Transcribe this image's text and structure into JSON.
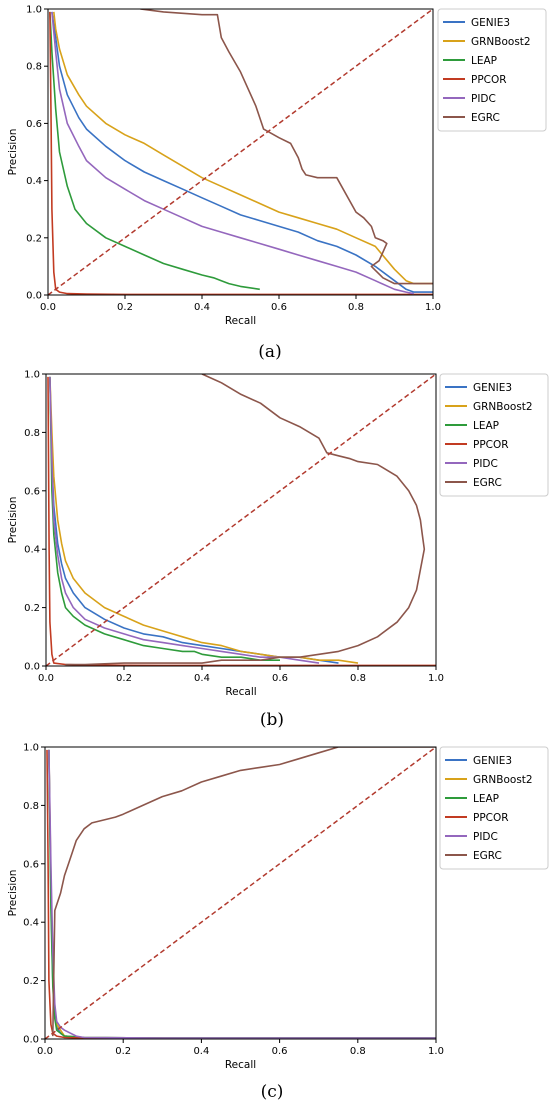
{
  "figure": {
    "panel_labels": [
      "(a)",
      "(b)",
      "(c)"
    ]
  },
  "colors": {
    "GENIE3": "#3a73c4",
    "GRNBoost2": "#d8a21a",
    "LEAP": "#2e9b3b",
    "PPCOR": "#c23b22",
    "PIDC": "#9467bd",
    "EGRC": "#8c564b",
    "diagonal": "#b23a2e"
  },
  "chart_data": [
    {
      "type": "line",
      "panel": "(a)",
      "xlabel": "Recall",
      "ylabel": "Precision",
      "xlim": [
        0,
        1
      ],
      "ylim": [
        0,
        1
      ],
      "xticks": [
        "0.0",
        "0.2",
        "0.4",
        "0.6",
        "0.8",
        "1.0"
      ],
      "yticks": [
        "0.0",
        "0.2",
        "0.4",
        "0.6",
        "0.8",
        "1.0"
      ],
      "grid": false,
      "legend_position": "right-top",
      "diagonal": {
        "x": [
          0,
          1
        ],
        "y": [
          0,
          1
        ],
        "style": "dashed"
      },
      "series": [
        {
          "name": "GENIE3",
          "x": [
            0.01,
            0.02,
            0.03,
            0.05,
            0.08,
            0.1,
            0.15,
            0.2,
            0.25,
            0.3,
            0.35,
            0.4,
            0.45,
            0.5,
            0.55,
            0.6,
            0.65,
            0.7,
            0.75,
            0.8,
            0.85,
            0.9,
            0.93,
            0.95,
            1.0
          ],
          "y": [
            0.99,
            0.9,
            0.8,
            0.7,
            0.62,
            0.58,
            0.52,
            0.47,
            0.43,
            0.4,
            0.37,
            0.34,
            0.31,
            0.28,
            0.26,
            0.24,
            0.22,
            0.19,
            0.17,
            0.14,
            0.1,
            0.05,
            0.02,
            0.01,
            0.01
          ]
        },
        {
          "name": "GRNBoost2",
          "x": [
            0.015,
            0.02,
            0.03,
            0.05,
            0.08,
            0.1,
            0.15,
            0.2,
            0.25,
            0.3,
            0.35,
            0.4,
            0.45,
            0.5,
            0.55,
            0.6,
            0.65,
            0.7,
            0.75,
            0.8,
            0.85,
            0.9,
            0.93,
            0.95,
            1.0
          ],
          "y": [
            0.99,
            0.93,
            0.86,
            0.77,
            0.7,
            0.66,
            0.6,
            0.56,
            0.53,
            0.49,
            0.45,
            0.41,
            0.38,
            0.35,
            0.32,
            0.29,
            0.27,
            0.25,
            0.23,
            0.2,
            0.17,
            0.09,
            0.05,
            0.04,
            0.04
          ]
        },
        {
          "name": "LEAP",
          "x": [
            0.005,
            0.01,
            0.02,
            0.03,
            0.05,
            0.07,
            0.1,
            0.15,
            0.2,
            0.25,
            0.3,
            0.35,
            0.4,
            0.43,
            0.45,
            0.47,
            0.5,
            0.55
          ],
          "y": [
            0.99,
            0.85,
            0.65,
            0.5,
            0.38,
            0.3,
            0.25,
            0.2,
            0.17,
            0.14,
            0.11,
            0.09,
            0.07,
            0.06,
            0.05,
            0.04,
            0.03,
            0.02
          ]
        },
        {
          "name": "PPCOR",
          "x": [
            0.005,
            0.008,
            0.01,
            0.015,
            0.02,
            0.03,
            0.05,
            0.1,
            0.2,
            0.4,
            0.6,
            0.8,
            1.0
          ],
          "y": [
            0.99,
            0.6,
            0.3,
            0.08,
            0.02,
            0.01,
            0.005,
            0.003,
            0.002,
            0.002,
            0.002,
            0.002,
            0.002
          ]
        },
        {
          "name": "PIDC",
          "x": [
            0.01,
            0.02,
            0.03,
            0.05,
            0.08,
            0.1,
            0.15,
            0.2,
            0.25,
            0.3,
            0.35,
            0.4,
            0.45,
            0.5,
            0.55,
            0.6,
            0.65,
            0.7,
            0.75,
            0.8,
            0.85,
            0.9,
            0.93,
            0.95
          ],
          "y": [
            0.99,
            0.85,
            0.72,
            0.6,
            0.52,
            0.47,
            0.41,
            0.37,
            0.33,
            0.3,
            0.27,
            0.24,
            0.22,
            0.2,
            0.18,
            0.16,
            0.14,
            0.12,
            0.1,
            0.08,
            0.05,
            0.02,
            0.01,
            0.005
          ]
        },
        {
          "name": "EGRC",
          "x": [
            0.24,
            0.3,
            0.4,
            0.44,
            0.45,
            0.47,
            0.5,
            0.52,
            0.54,
            0.56,
            0.6,
            0.63,
            0.65,
            0.66,
            0.67,
            0.7,
            0.73,
            0.75,
            0.8,
            0.82,
            0.84,
            0.85,
            0.87,
            0.88,
            0.86,
            0.84,
            0.87,
            0.9,
            0.95,
            1.0
          ],
          "y": [
            1.0,
            0.99,
            0.98,
            0.98,
            0.9,
            0.85,
            0.78,
            0.72,
            0.66,
            0.58,
            0.55,
            0.53,
            0.48,
            0.44,
            0.42,
            0.41,
            0.41,
            0.41,
            0.29,
            0.27,
            0.24,
            0.2,
            0.19,
            0.18,
            0.12,
            0.1,
            0.06,
            0.04,
            0.04,
            0.04
          ]
        }
      ]
    },
    {
      "type": "line",
      "panel": "(b)",
      "xlabel": "Recall",
      "ylabel": "Precision",
      "xlim": [
        0,
        1
      ],
      "ylim": [
        0,
        1
      ],
      "xticks": [
        "0.0",
        "0.2",
        "0.4",
        "0.6",
        "0.8",
        "1.0"
      ],
      "yticks": [
        "0.0",
        "0.2",
        "0.4",
        "0.6",
        "0.8",
        "1.0"
      ],
      "grid": false,
      "legend_position": "right-top",
      "diagonal": {
        "x": [
          0,
          1
        ],
        "y": [
          0,
          1
        ],
        "style": "dashed"
      },
      "series": [
        {
          "name": "GENIE3",
          "x": [
            0.01,
            0.015,
            0.02,
            0.03,
            0.04,
            0.05,
            0.07,
            0.1,
            0.15,
            0.2,
            0.25,
            0.3,
            0.35,
            0.4,
            0.45,
            0.5,
            0.55,
            0.6,
            0.65,
            0.7,
            0.75
          ],
          "y": [
            0.99,
            0.7,
            0.55,
            0.42,
            0.35,
            0.3,
            0.25,
            0.2,
            0.16,
            0.13,
            0.11,
            0.1,
            0.08,
            0.07,
            0.06,
            0.05,
            0.04,
            0.03,
            0.03,
            0.02,
            0.01
          ]
        },
        {
          "name": "GRNBoost2",
          "x": [
            0.01,
            0.015,
            0.02,
            0.03,
            0.04,
            0.05,
            0.07,
            0.1,
            0.15,
            0.2,
            0.25,
            0.3,
            0.35,
            0.4,
            0.45,
            0.5,
            0.55,
            0.6,
            0.65,
            0.7,
            0.75,
            0.8
          ],
          "y": [
            0.99,
            0.8,
            0.65,
            0.5,
            0.42,
            0.36,
            0.3,
            0.25,
            0.2,
            0.17,
            0.14,
            0.12,
            0.1,
            0.08,
            0.07,
            0.05,
            0.04,
            0.03,
            0.03,
            0.02,
            0.02,
            0.01
          ]
        },
        {
          "name": "LEAP",
          "x": [
            0.01,
            0.015,
            0.02,
            0.03,
            0.04,
            0.05,
            0.07,
            0.1,
            0.15,
            0.2,
            0.25,
            0.3,
            0.35,
            0.38,
            0.4,
            0.45,
            0.5,
            0.55,
            0.6
          ],
          "y": [
            0.99,
            0.6,
            0.45,
            0.32,
            0.25,
            0.2,
            0.17,
            0.14,
            0.11,
            0.09,
            0.07,
            0.06,
            0.05,
            0.05,
            0.04,
            0.03,
            0.03,
            0.02,
            0.02
          ]
        },
        {
          "name": "PPCOR",
          "x": [
            0.005,
            0.008,
            0.01,
            0.015,
            0.02,
            0.05,
            0.1,
            0.3,
            0.5,
            0.7,
            0.9,
            1.0
          ],
          "y": [
            0.99,
            0.4,
            0.15,
            0.04,
            0.01,
            0.005,
            0.003,
            0.002,
            0.002,
            0.002,
            0.002,
            0.002
          ]
        },
        {
          "name": "PIDC",
          "x": [
            0.01,
            0.015,
            0.02,
            0.03,
            0.04,
            0.05,
            0.07,
            0.1,
            0.15,
            0.2,
            0.25,
            0.3,
            0.35,
            0.4,
            0.45,
            0.5,
            0.55,
            0.6,
            0.65,
            0.7
          ],
          "y": [
            0.99,
            0.7,
            0.5,
            0.38,
            0.3,
            0.25,
            0.2,
            0.16,
            0.13,
            0.11,
            0.09,
            0.08,
            0.07,
            0.06,
            0.05,
            0.04,
            0.03,
            0.03,
            0.02,
            0.01
          ]
        },
        {
          "name": "EGRC",
          "x": [
            0.4,
            0.45,
            0.5,
            0.55,
            0.6,
            0.65,
            0.7,
            0.72,
            0.75,
            0.78,
            0.8,
            0.85,
            0.9,
            0.93,
            0.95,
            0.96,
            0.965,
            0.97,
            0.96,
            0.95,
            0.93,
            0.9,
            0.85,
            0.8,
            0.75,
            0.7,
            0.65,
            0.6,
            0.55,
            0.5,
            0.45,
            0.4,
            0.3,
            0.2,
            0.1,
            0.05
          ],
          "y": [
            1.0,
            0.97,
            0.93,
            0.9,
            0.85,
            0.82,
            0.78,
            0.73,
            0.72,
            0.71,
            0.7,
            0.69,
            0.65,
            0.6,
            0.55,
            0.5,
            0.45,
            0.4,
            0.33,
            0.26,
            0.2,
            0.15,
            0.1,
            0.07,
            0.05,
            0.04,
            0.03,
            0.03,
            0.02,
            0.02,
            0.02,
            0.01,
            0.01,
            0.01,
            0.005,
            0.005
          ]
        }
      ]
    },
    {
      "type": "line",
      "panel": "(c)",
      "xlabel": "Recall",
      "ylabel": "Precision",
      "xlim": [
        0,
        1
      ],
      "ylim": [
        0,
        1
      ],
      "xticks": [
        "0.0",
        "0.2",
        "0.4",
        "0.6",
        "0.8",
        "1.0"
      ],
      "yticks": [
        "0.0",
        "0.2",
        "0.4",
        "0.6",
        "0.8",
        "1.0"
      ],
      "grid": false,
      "legend_position": "right-top",
      "diagonal": {
        "x": [
          0,
          1
        ],
        "y": [
          0,
          1
        ],
        "style": "dashed"
      },
      "series": [
        {
          "name": "GENIE3",
          "x": [
            0.01,
            0.015,
            0.02,
            0.025,
            0.03,
            0.04,
            0.05,
            0.1,
            0.3,
            0.6,
            1.0
          ],
          "y": [
            0.99,
            0.5,
            0.2,
            0.08,
            0.04,
            0.02,
            0.01,
            0.005,
            0.003,
            0.003,
            0.003
          ]
        },
        {
          "name": "GRNBoost2",
          "x": [
            0.01,
            0.015,
            0.02,
            0.025,
            0.03,
            0.04,
            0.05,
            0.1,
            0.3,
            0.6,
            1.0
          ],
          "y": [
            0.99,
            0.55,
            0.25,
            0.1,
            0.05,
            0.03,
            0.01,
            0.005,
            0.003,
            0.003,
            0.003
          ]
        },
        {
          "name": "LEAP",
          "x": [
            0.01,
            0.015,
            0.02,
            0.025,
            0.03,
            0.04,
            0.05,
            0.1,
            0.3,
            0.6,
            1.0
          ],
          "y": [
            0.99,
            0.45,
            0.18,
            0.07,
            0.03,
            0.02,
            0.01,
            0.005,
            0.003,
            0.003,
            0.003
          ]
        },
        {
          "name": "PPCOR",
          "x": [
            0.005,
            0.008,
            0.01,
            0.015,
            0.02,
            0.03,
            0.05,
            0.1,
            0.5,
            1.0
          ],
          "y": [
            0.99,
            0.6,
            0.2,
            0.05,
            0.02,
            0.01,
            0.005,
            0.003,
            0.002,
            0.002
          ]
        },
        {
          "name": "PIDC",
          "x": [
            0.01,
            0.015,
            0.02,
            0.025,
            0.03,
            0.04,
            0.05,
            0.08,
            0.1,
            0.3,
            0.6,
            1.0
          ],
          "y": [
            0.99,
            0.6,
            0.3,
            0.12,
            0.06,
            0.04,
            0.03,
            0.01,
            0.005,
            0.003,
            0.003,
            0.003
          ]
        },
        {
          "name": "EGRC",
          "x": [
            0.02,
            0.025,
            0.03,
            0.04,
            0.05,
            0.06,
            0.07,
            0.08,
            0.1,
            0.12,
            0.15,
            0.18,
            0.2,
            0.25,
            0.3,
            0.35,
            0.4,
            0.45,
            0.5,
            0.55,
            0.6,
            0.65,
            0.7,
            0.75,
            0.8,
            1.0
          ],
          "y": [
            0.01,
            0.44,
            0.46,
            0.5,
            0.56,
            0.6,
            0.64,
            0.68,
            0.72,
            0.74,
            0.75,
            0.76,
            0.77,
            0.8,
            0.83,
            0.85,
            0.88,
            0.9,
            0.92,
            0.93,
            0.94,
            0.96,
            0.98,
            1.0,
            1.0,
            1.0
          ]
        }
      ]
    }
  ]
}
